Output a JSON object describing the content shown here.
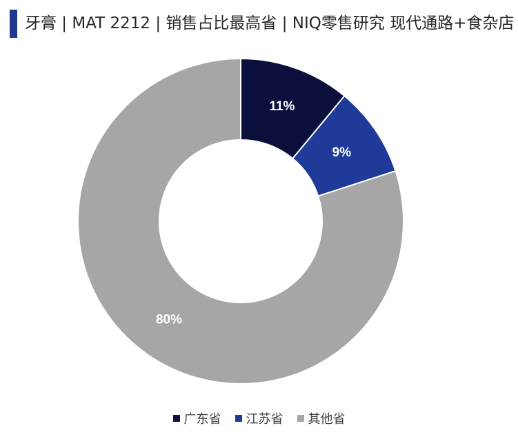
{
  "header": {
    "title": "牙膏 | MAT 2212 | 销售占比最高省 | NIQ零售研究 现代通路+食杂店"
  },
  "chart_data": {
    "type": "pie",
    "variant": "donut",
    "slices": [
      {
        "label": "广东省",
        "value": 11,
        "display": "11%",
        "color": "#0a0f3c",
        "label_color": "#ffffff"
      },
      {
        "label": "江苏省",
        "value": 9,
        "display": "9%",
        "color": "#1f3a99",
        "label_color": "#ffffff"
      },
      {
        "label": "其他省",
        "value": 80,
        "display": "80%",
        "color": "#a6a6a6",
        "label_color": "#ffffff"
      }
    ],
    "legend_position": "bottom"
  }
}
